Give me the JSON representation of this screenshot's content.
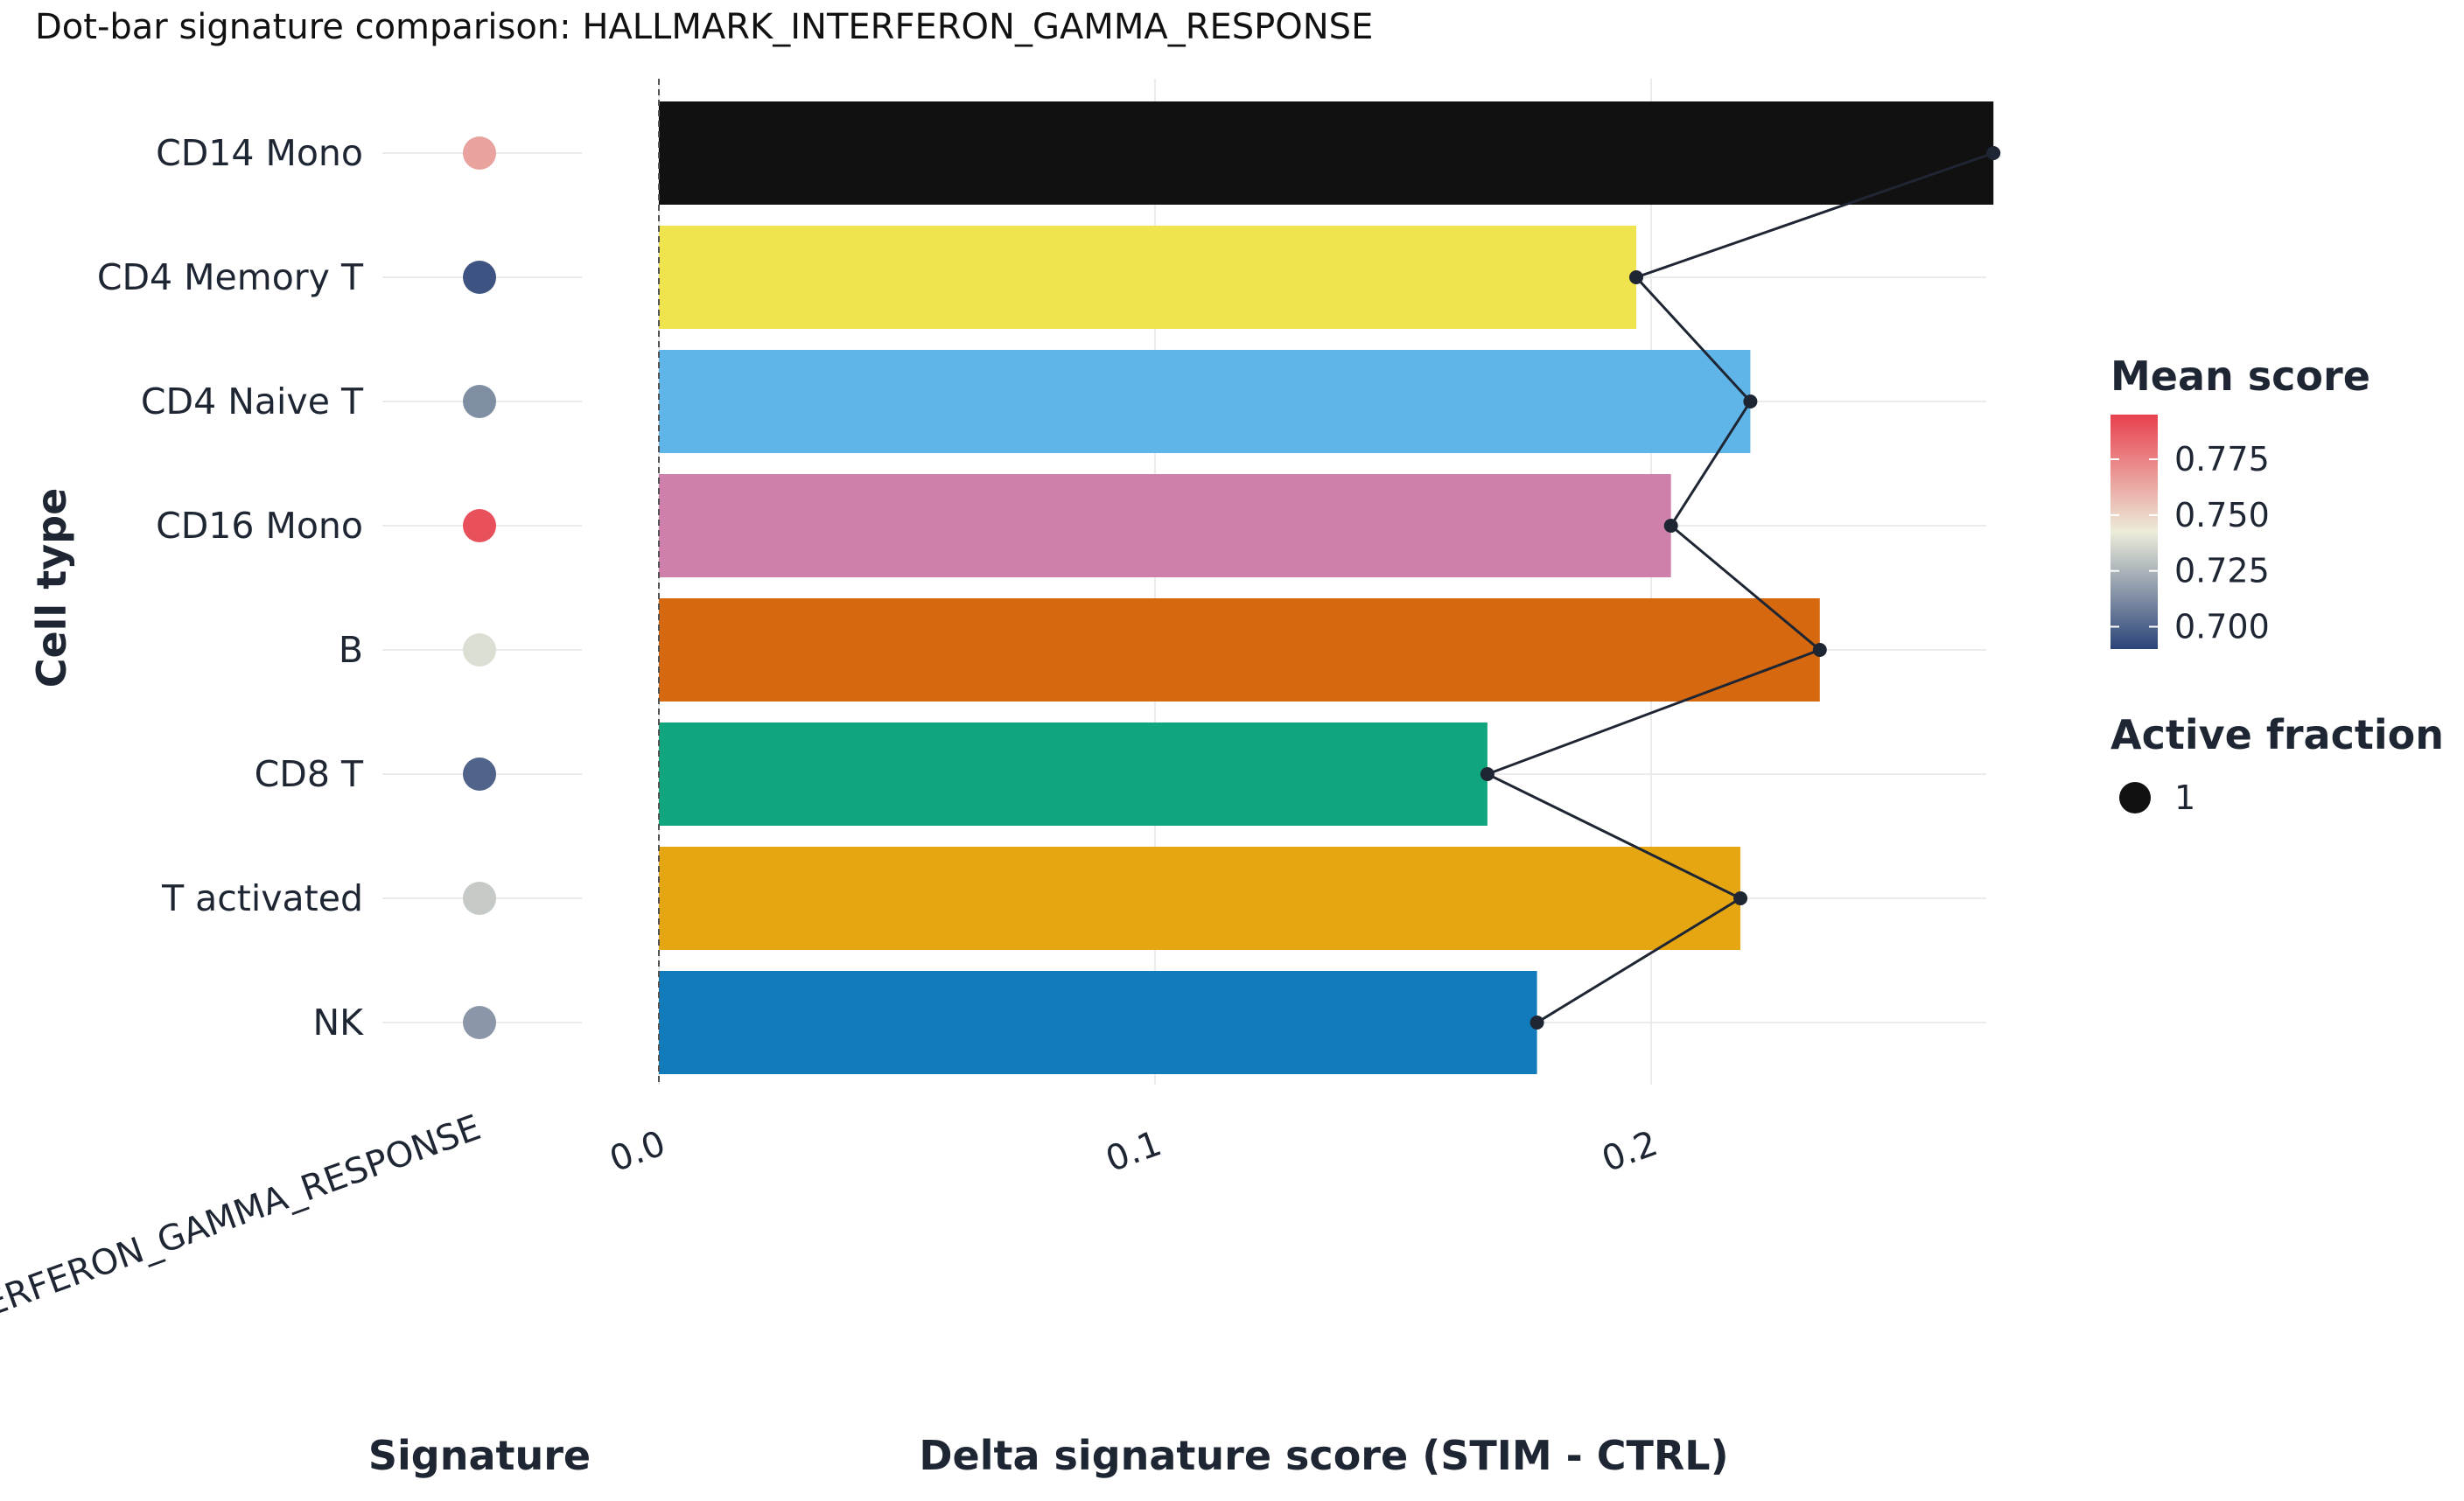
{
  "chart_data": {
    "type": "bar",
    "orientation": "horizontal",
    "title": "Dot-bar signature comparison: HALLMARK_INTERFERON_GAMMA_RESPONSE",
    "ylabel": "Cell type",
    "xlabel": "Delta signature score (STIM - CTRL)",
    "dot_panel_xlabel": "Signature",
    "dot_panel_xtick": "HALLMARK_INTERFERON_GAMMA_RESPONSE",
    "categories": [
      "CD14 Mono",
      "CD4 Memory T",
      "CD4 Naive T",
      "CD16 Mono",
      "B",
      "CD8 T",
      "T activated",
      "NK"
    ],
    "values": [
      0.269,
      0.197,
      0.22,
      0.204,
      0.234,
      0.167,
      0.218,
      0.177
    ],
    "bar_colors": [
      "#111111",
      "#f0e44e",
      "#5fb5e8",
      "#cf80aa",
      "#d6680f",
      "#10a57d",
      "#e6a612",
      "#127bbb"
    ],
    "mean_score": [
      0.765,
      0.695,
      0.713,
      0.79,
      0.738,
      0.7,
      0.732,
      0.716
    ],
    "active_fraction": [
      1,
      1,
      1,
      1,
      1,
      1,
      1,
      1
    ],
    "xlim": [
      0.0,
      0.28
    ],
    "xticks": [
      "0.0",
      "0.1",
      "0.2"
    ],
    "xtick_values": [
      0.0,
      0.1,
      0.2
    ],
    "grid": true,
    "connecting_line": true,
    "legend": {
      "placement": "right",
      "color_title": "Mean score",
      "color_ticks": [
        "0.775",
        "0.750",
        "0.725",
        "0.700"
      ],
      "color_tick_values": [
        0.775,
        0.75,
        0.725,
        0.7
      ],
      "color_range": [
        0.69,
        0.795
      ],
      "color_low": "#2b4479",
      "color_mid": "#ececda",
      "color_high": "#e8404e",
      "size_title": "Active fraction",
      "size_value": "1"
    }
  }
}
